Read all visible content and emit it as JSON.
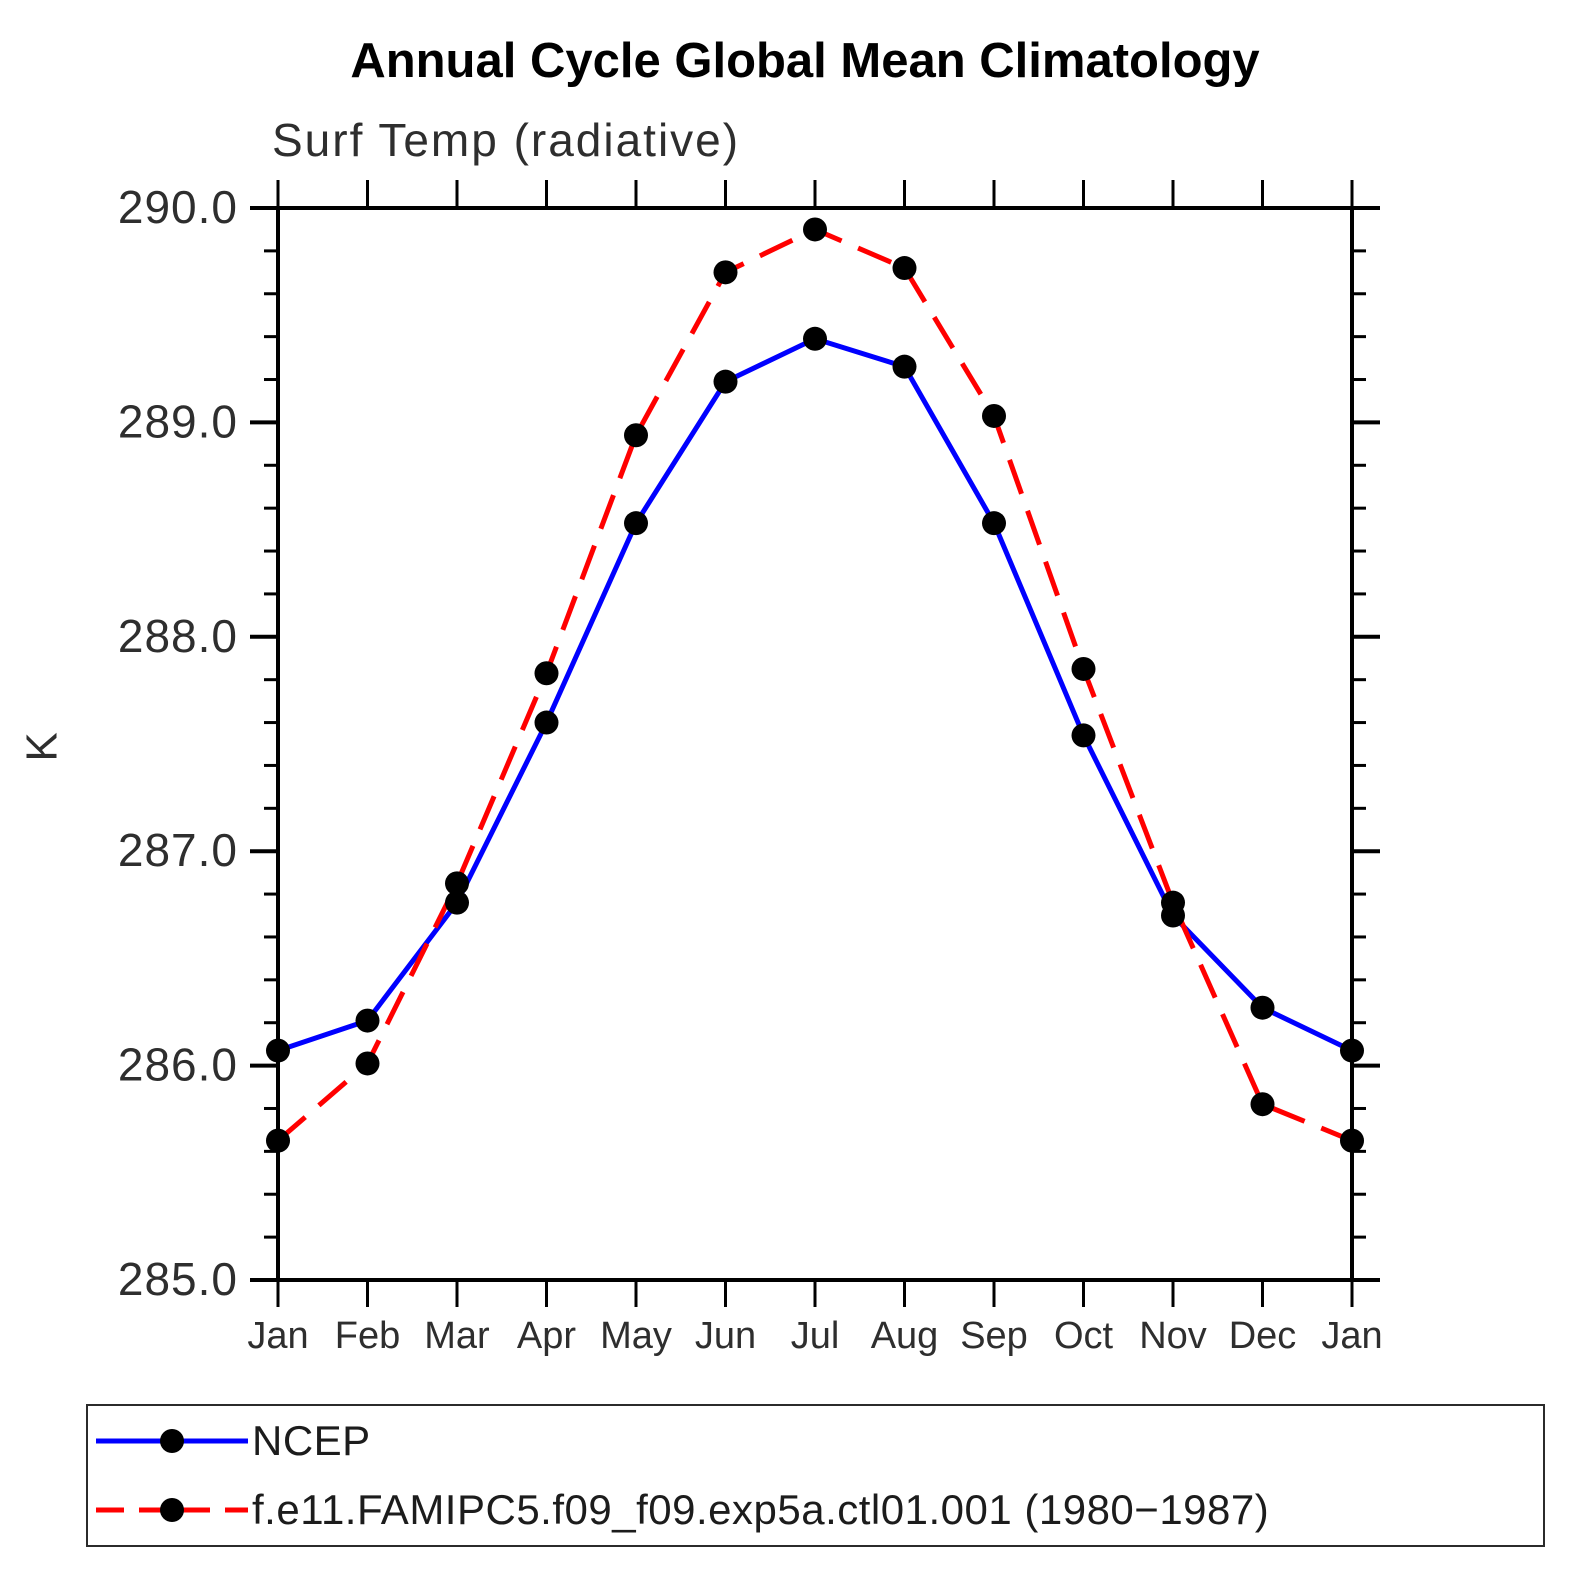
{
  "chart_data": {
    "type": "line",
    "title": "Annual Cycle Global Mean Climatology",
    "subtitle": "Surf Temp (radiative)",
    "ylabel": "K",
    "categories": [
      "Jan",
      "Feb",
      "Mar",
      "Apr",
      "May",
      "Jun",
      "Jul",
      "Aug",
      "Sep",
      "Oct",
      "Nov",
      "Dec",
      "Jan"
    ],
    "ylim": [
      285.0,
      290.0
    ],
    "ytick_labels": [
      "285.0",
      "286.0",
      "287.0",
      "288.0",
      "289.0",
      "290.0"
    ],
    "ytick_major_step": 1.0,
    "ytick_minor_step": 0.2,
    "grid": false,
    "legend_position": "bottom",
    "series": [
      {
        "name": "NCEP",
        "color": "#0000ff",
        "line_style": "solid",
        "marker": "filled-circle",
        "marker_color": "#000000",
        "values": [
          286.07,
          286.21,
          286.76,
          287.6,
          288.53,
          289.19,
          289.39,
          289.26,
          288.53,
          287.54,
          286.7,
          286.27,
          286.07
        ]
      },
      {
        "name": "f.e11.FAMIPC5.f09_f09.exp5a.ctl01.001 (1980−1987)",
        "color": "#ff0000",
        "line_style": "dashed",
        "marker": "filled-circle",
        "marker_color": "#000000",
        "values": [
          285.65,
          286.01,
          286.85,
          287.83,
          288.94,
          289.7,
          289.9,
          289.72,
          289.03,
          287.85,
          286.76,
          285.82,
          285.65
        ]
      }
    ]
  }
}
